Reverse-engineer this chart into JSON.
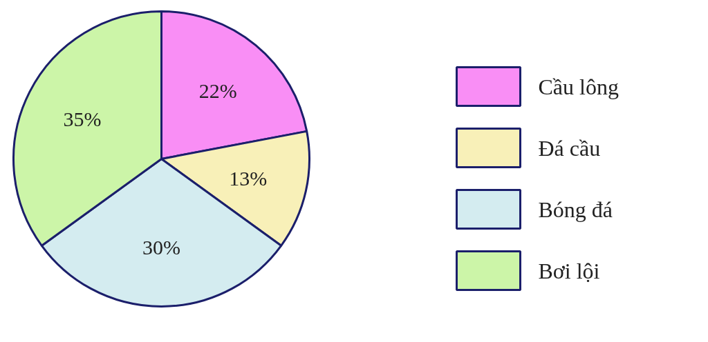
{
  "chart_data": {
    "type": "pie",
    "categories": [
      "Cầu lông",
      "Đá cầu",
      "Bóng đá",
      "Bơi lội"
    ],
    "values": [
      22,
      13,
      30,
      35
    ],
    "colors": [
      "#f98ef5",
      "#f8f0b8",
      "#d4ecf0",
      "#ccf5a8"
    ],
    "value_labels": [
      "22%",
      "13%",
      "30%",
      "35%"
    ],
    "legend": "right"
  }
}
